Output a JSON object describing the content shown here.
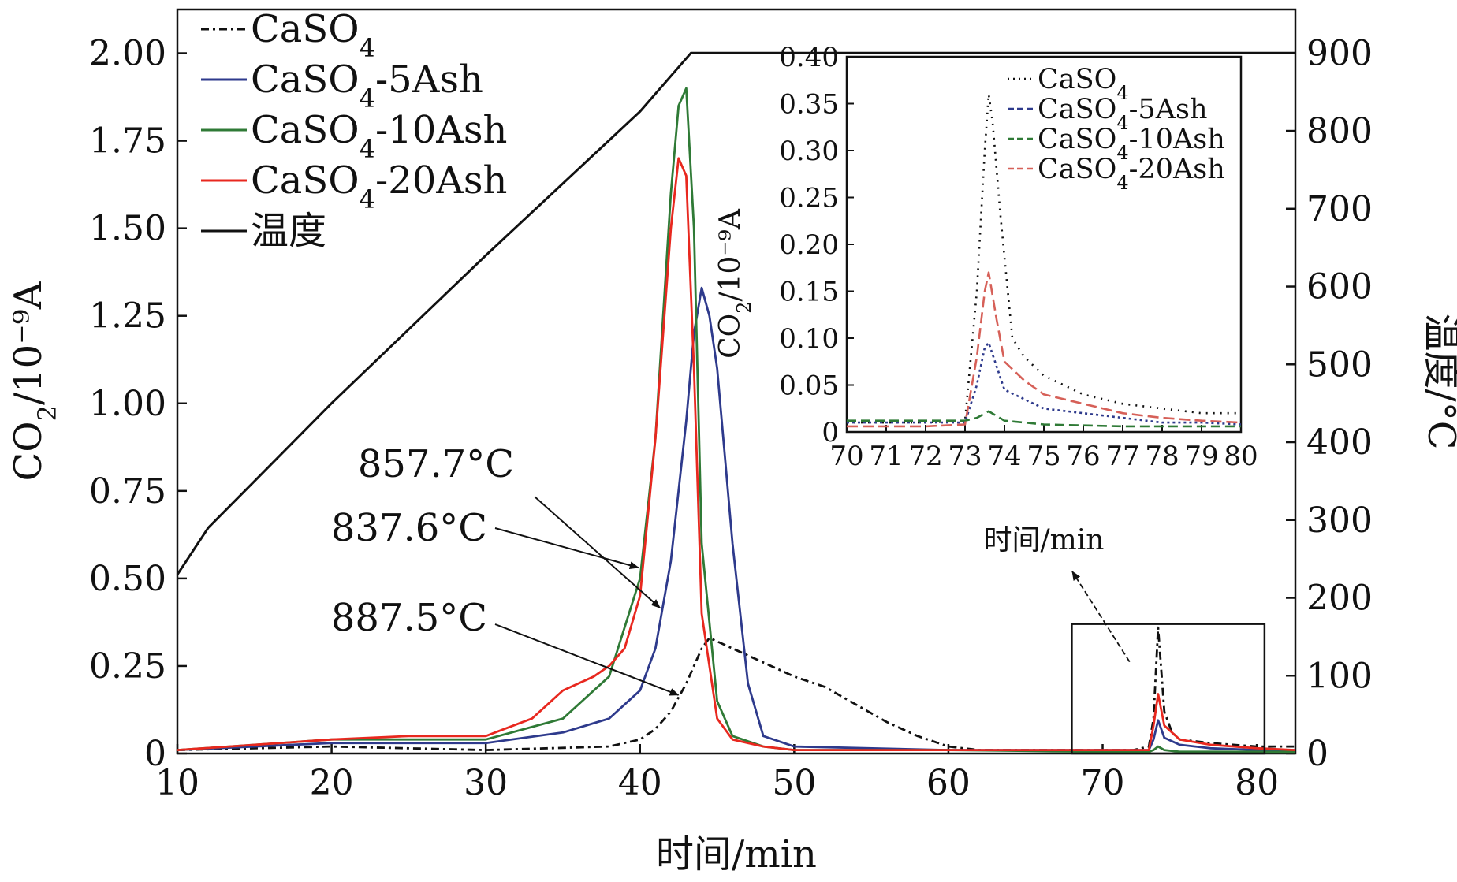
{
  "chart_data": [
    {
      "id": "main",
      "type": "line",
      "xlabel": "时间/min",
      "ylabel": "CO",
      "ylabel_sub": "2",
      "ylabel_rest": "/10⁻⁹A",
      "y2label": "温度/°C",
      "xlim": [
        10,
        82.5
      ],
      "ylim": [
        0,
        2.125
      ],
      "y2lim": [
        0,
        956
      ],
      "xticks": [
        10,
        20,
        30,
        40,
        50,
        60,
        70,
        80
      ],
      "xtick_labels": [
        "10",
        "20",
        "30",
        "40",
        "50",
        "60",
        "70",
        "80"
      ],
      "yticks": [
        0,
        0.25,
        0.5,
        0.75,
        1.0,
        1.25,
        1.5,
        1.75,
        2.0
      ],
      "ytick_labels": [
        "0",
        "0.25",
        "0.50",
        "0.75",
        "1.00",
        "1.25",
        "1.50",
        "1.75",
        "2.00"
      ],
      "y2ticks": [
        0,
        100,
        200,
        300,
        400,
        500,
        600,
        700,
        800,
        900
      ],
      "y2tick_labels": [
        "0",
        "100",
        "200",
        "300",
        "400",
        "500",
        "600",
        "700",
        "800",
        "900"
      ],
      "legend": {
        "placement": "top-left",
        "entries": [
          {
            "series": "caso4",
            "base": "CaSO",
            "sub": "4",
            "rest": ""
          },
          {
            "series": "ash5",
            "base": "CaSO",
            "sub": "4",
            "rest": "-5Ash"
          },
          {
            "series": "ash10",
            "base": "CaSO",
            "sub": "4",
            "rest": "-10Ash"
          },
          {
            "series": "ash20",
            "base": "CaSO",
            "sub": "4",
            "rest": "-20Ash"
          },
          {
            "series": "temp",
            "base": "温度",
            "sub": "",
            "rest": ""
          }
        ]
      },
      "series": [
        {
          "id": "caso4",
          "name": "CaSO4",
          "color": "#111111",
          "dash": "10 5 3 5",
          "axis": "left",
          "x": [
            10,
            20,
            30,
            38,
            40,
            41,
            42,
            43,
            44,
            44.5,
            45,
            47,
            50,
            52,
            54,
            56,
            58,
            60,
            62,
            65,
            70,
            72,
            73,
            73.3,
            73.6,
            74,
            74.5,
            75,
            77,
            80,
            82.5
          ],
          "y": [
            0.01,
            0.02,
            0.01,
            0.02,
            0.04,
            0.07,
            0.12,
            0.2,
            0.3,
            0.33,
            0.32,
            0.28,
            0.22,
            0.19,
            0.14,
            0.09,
            0.05,
            0.02,
            0.01,
            0.01,
            0.01,
            0.01,
            0.02,
            0.1,
            0.36,
            0.12,
            0.06,
            0.04,
            0.03,
            0.02,
            0.02
          ]
        },
        {
          "id": "ash5",
          "name": "CaSO4-5Ash",
          "color": "#2e3a8c",
          "dash": "",
          "axis": "left",
          "x": [
            10,
            20,
            30,
            35,
            38,
            40,
            41,
            42,
            43,
            43.5,
            44,
            44.5,
            45,
            46,
            47,
            48,
            50,
            60,
            70,
            73,
            73.3,
            73.6,
            74,
            75,
            77,
            80,
            82.5
          ],
          "y": [
            0.01,
            0.03,
            0.03,
            0.06,
            0.1,
            0.18,
            0.3,
            0.55,
            0.95,
            1.2,
            1.33,
            1.25,
            1.1,
            0.6,
            0.2,
            0.05,
            0.02,
            0.01,
            0.01,
            0.01,
            0.04,
            0.095,
            0.045,
            0.025,
            0.015,
            0.01,
            0.01
          ]
        },
        {
          "id": "ash10",
          "name": "CaSO4-10Ash",
          "color": "#2f7a36",
          "dash": "",
          "axis": "left",
          "x": [
            10,
            20,
            30,
            35,
            38,
            40,
            41,
            42,
            42.5,
            43,
            43.5,
            44,
            45,
            46,
            48,
            50,
            60,
            70,
            73,
            73.3,
            73.6,
            74,
            75,
            80,
            82.5
          ],
          "y": [
            0.01,
            0.04,
            0.04,
            0.1,
            0.22,
            0.5,
            0.9,
            1.6,
            1.85,
            1.9,
            1.5,
            0.6,
            0.15,
            0.05,
            0.02,
            0.01,
            0.01,
            0.005,
            0.005,
            0.01,
            0.02,
            0.01,
            0.005,
            0.005,
            0.005
          ]
        },
        {
          "id": "ash20",
          "name": "CaSO4-20Ash",
          "color": "#e8281f",
          "dash": "",
          "axis": "left",
          "x": [
            10,
            20,
            25,
            30,
            33,
            35,
            36,
            37,
            38,
            39,
            40,
            41,
            42,
            42.5,
            43,
            43.5,
            44,
            45,
            46,
            48,
            50,
            60,
            70,
            73,
            73.3,
            73.6,
            74,
            75,
            77,
            80,
            82.5
          ],
          "y": [
            0.01,
            0.04,
            0.05,
            0.05,
            0.1,
            0.18,
            0.2,
            0.22,
            0.25,
            0.3,
            0.45,
            0.9,
            1.5,
            1.7,
            1.65,
            1.1,
            0.4,
            0.1,
            0.04,
            0.02,
            0.01,
            0.01,
            0.01,
            0.01,
            0.08,
            0.17,
            0.08,
            0.04,
            0.025,
            0.015,
            0.01
          ]
        },
        {
          "id": "temp",
          "name": "温度",
          "color": "#111111",
          "dash": "",
          "axis": "right",
          "x": [
            10,
            12,
            15,
            20,
            30,
            40,
            43.3,
            82.5
          ],
          "y": [
            230,
            290,
            350,
            450,
            640,
            825,
            900,
            900
          ]
        }
      ],
      "annotations": [
        {
          "text": "857.7°C",
          "series": "ash5",
          "target_x": 41.5
        },
        {
          "text": "837.6°C",
          "series": "ash10",
          "target_x": 40.1
        },
        {
          "text": "887.5°C",
          "series": "caso4",
          "target_x": 42.7
        }
      ],
      "zoom_box": {
        "x0": 68,
        "x1": 80.5,
        "y0": 0,
        "y1": 0.37
      }
    },
    {
      "id": "inset",
      "type": "line",
      "xlabel": "时间/min",
      "ylabel": "CO",
      "ylabel_sub": "2",
      "ylabel_rest": "/10⁻⁹A",
      "xlim": [
        70,
        80
      ],
      "ylim": [
        0,
        0.4
      ],
      "xticks": [
        70,
        71,
        72,
        73,
        74,
        75,
        76,
        77,
        78,
        79,
        80
      ],
      "xtick_labels": [
        "70",
        "71",
        "72",
        "73",
        "74",
        "75",
        "76",
        "77",
        "78",
        "79",
        "80"
      ],
      "yticks": [
        0,
        0.05,
        0.1,
        0.15,
        0.2,
        0.25,
        0.3,
        0.35,
        0.4
      ],
      "ytick_labels": [
        "0",
        "0.05",
        "0.10",
        "0.15",
        "0.20",
        "0.25",
        "0.30",
        "0.35",
        "0.40"
      ],
      "legend": {
        "placement": "top-right",
        "entries": [
          {
            "series": "caso4",
            "base": "CaSO",
            "sub": "4",
            "rest": ""
          },
          {
            "series": "ash5",
            "base": "CaSO",
            "sub": "4",
            "rest": "-5Ash"
          },
          {
            "series": "ash10",
            "base": "CaSO",
            "sub": "4",
            "rest": "-10Ash"
          },
          {
            "series": "ash20",
            "base": "CaSO",
            "sub": "4",
            "rest": "-20Ash"
          }
        ]
      },
      "series": [
        {
          "id": "caso4",
          "name": "CaSO4",
          "color": "#111111",
          "dash": "2 7",
          "x": [
            70,
            72,
            73,
            73.3,
            73.5,
            73.6,
            73.7,
            73.9,
            74.2,
            74.5,
            75,
            76,
            77,
            78,
            79,
            80
          ],
          "y": [
            0.01,
            0.01,
            0.012,
            0.15,
            0.3,
            0.36,
            0.33,
            0.23,
            0.1,
            0.08,
            0.06,
            0.04,
            0.03,
            0.025,
            0.02,
            0.02
          ]
        },
        {
          "id": "ash5",
          "name": "CaSO4-5Ash",
          "color": "#2e3a8c",
          "dash": "3 4",
          "x": [
            70,
            72,
            73,
            73.3,
            73.5,
            73.6,
            73.8,
            74,
            74.5,
            75,
            76,
            77,
            78,
            79,
            80
          ],
          "y": [
            0.01,
            0.01,
            0.01,
            0.05,
            0.09,
            0.095,
            0.07,
            0.045,
            0.035,
            0.025,
            0.02,
            0.015,
            0.01,
            0.01,
            0.008
          ]
        },
        {
          "id": "ash10",
          "name": "CaSO4-10Ash",
          "color": "#2f7a36",
          "dash": "12 6",
          "x": [
            70,
            72,
            73,
            73.3,
            73.6,
            74,
            75,
            76,
            77,
            78,
            79,
            80
          ],
          "y": [
            0.012,
            0.012,
            0.012,
            0.015,
            0.022,
            0.012,
            0.008,
            0.007,
            0.006,
            0.006,
            0.006,
            0.006
          ]
        },
        {
          "id": "ash20",
          "name": "CaSO4-20Ash",
          "color": "#d66058",
          "dash": "14 6",
          "x": [
            70,
            72,
            73,
            73.3,
            73.5,
            73.6,
            73.8,
            74,
            74.5,
            75,
            76,
            77,
            78,
            79,
            80
          ],
          "y": [
            0.006,
            0.006,
            0.008,
            0.08,
            0.15,
            0.17,
            0.12,
            0.075,
            0.055,
            0.04,
            0.03,
            0.02,
            0.015,
            0.012,
            0.01
          ]
        }
      ]
    }
  ]
}
